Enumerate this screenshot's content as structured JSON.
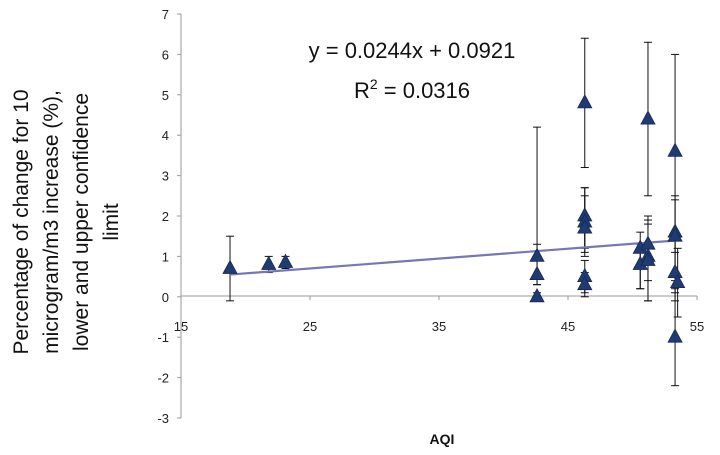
{
  "chart_data": {
    "type": "scatter",
    "title": "",
    "xlabel": "AQI",
    "ylabel_lines": [
      "Percentage of change for 10",
      "microgram/m3 increase (%),",
      "lower and upper confidence",
      "limit"
    ],
    "xlim": [
      15,
      55
    ],
    "ylim": [
      -3,
      7
    ],
    "x_ticks": [
      15,
      25,
      35,
      45,
      55
    ],
    "y_ticks": [
      -3,
      -2,
      -1,
      0,
      1,
      2,
      3,
      4,
      5,
      6,
      7
    ],
    "grid": false,
    "marker": "triangle",
    "marker_color": "#1f3b73",
    "trendline_color": "#7777b8",
    "annotations": {
      "equation": "y = 0.0244x + 0.0921",
      "r2_prefix": "R",
      "r2_sup": "2",
      "r2_rest": " = 0.0316"
    },
    "trendline": {
      "slope": 0.0244,
      "intercept": 0.0921,
      "x_range": [
        18.8,
        53.5
      ]
    },
    "points": [
      {
        "x": 18.8,
        "y": 0.7,
        "low": -0.1,
        "high": 1.5
      },
      {
        "x": 21.8,
        "y": 0.8,
        "low": 0.6,
        "high": 1.0
      },
      {
        "x": 23.1,
        "y": 0.85,
        "low": 0.7,
        "high": 1.0
      },
      {
        "x": 42.6,
        "y": 1.0,
        "low": 0.3,
        "high": 4.2
      },
      {
        "x": 42.6,
        "y": 0.55,
        "low": 0.3,
        "high": 1.3
      },
      {
        "x": 42.6,
        "y": 0.0,
        "low": -0.1,
        "high": 0.1
      },
      {
        "x": 46.3,
        "y": 4.8,
        "low": 3.2,
        "high": 6.4
      },
      {
        "x": 46.3,
        "y": 2.0,
        "low": 1.2,
        "high": 2.7
      },
      {
        "x": 46.3,
        "y": 1.85,
        "low": 1.1,
        "high": 2.7
      },
      {
        "x": 46.3,
        "y": 1.7,
        "low": 1.0,
        "high": 2.5
      },
      {
        "x": 46.3,
        "y": 0.5,
        "low": 0.1,
        "high": 0.9
      },
      {
        "x": 46.3,
        "y": 0.3,
        "low": 0.0,
        "high": 0.6
      },
      {
        "x": 50.6,
        "y": 1.2,
        "low": 0.2,
        "high": 1.6
      },
      {
        "x": 50.6,
        "y": 0.8,
        "low": 0.2,
        "high": 1.3
      },
      {
        "x": 51.2,
        "y": 4.4,
        "low": 2.5,
        "high": 6.3
      },
      {
        "x": 51.2,
        "y": 1.3,
        "low": 0.4,
        "high": 2.0
      },
      {
        "x": 51.2,
        "y": 1.0,
        "low": -0.1,
        "high": 1.9
      },
      {
        "x": 51.2,
        "y": 0.9,
        "low": -0.1,
        "high": 1.8
      },
      {
        "x": 53.3,
        "y": 3.6,
        "low": 1.1,
        "high": 6.0
      },
      {
        "x": 53.3,
        "y": 1.6,
        "low": 0.1,
        "high": 2.5
      },
      {
        "x": 53.3,
        "y": 1.5,
        "low": 0.4,
        "high": 2.4
      },
      {
        "x": 53.3,
        "y": 0.6,
        "low": -0.1,
        "high": 1.4
      },
      {
        "x": 53.5,
        "y": 0.35,
        "low": -0.5,
        "high": 1.2
      },
      {
        "x": 53.3,
        "y": -1.0,
        "low": -2.2,
        "high": 0.2
      }
    ]
  }
}
